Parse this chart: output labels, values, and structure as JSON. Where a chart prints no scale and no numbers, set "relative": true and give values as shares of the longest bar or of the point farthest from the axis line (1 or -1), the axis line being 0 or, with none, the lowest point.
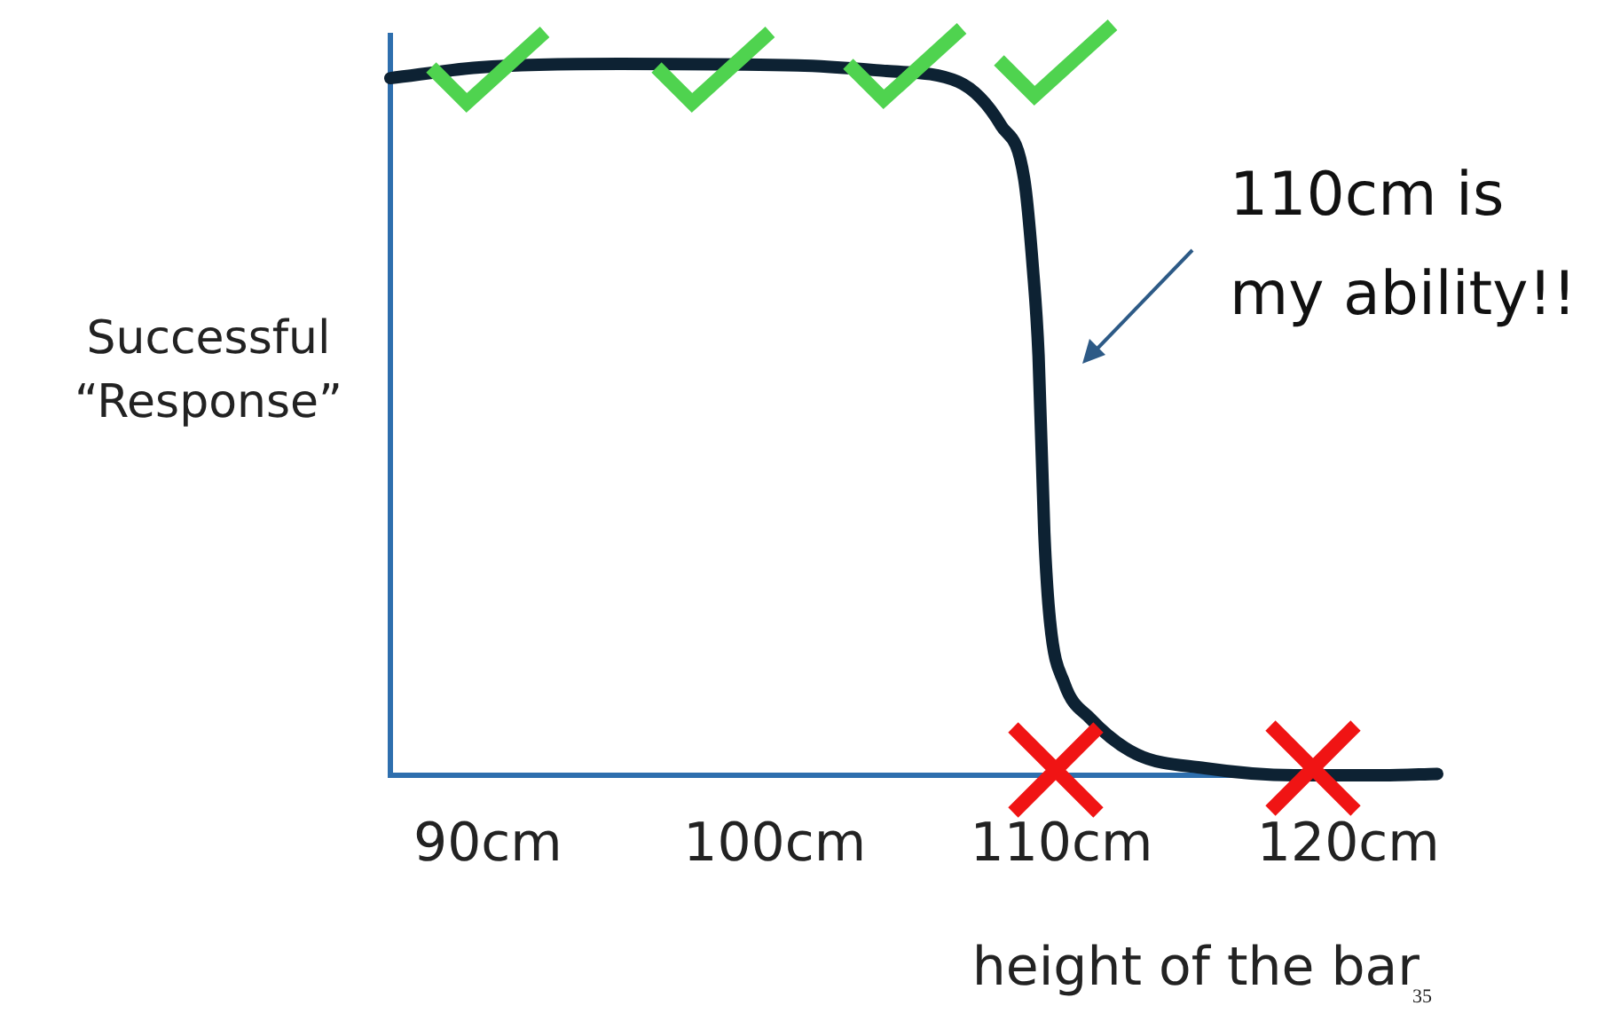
{
  "chart_data": {
    "type": "line",
    "relative": true,
    "xlabel": "height of the bar",
    "ylabel": "Successful “Response”",
    "annotations": [
      "110cm is my ability!!",
      "35"
    ],
    "x": [
      86.6,
      89.7,
      94.6,
      100.8,
      103.9,
      106.4,
      107.9,
      108.7,
      109.0,
      109.2,
      109.4,
      109.6,
      110.1,
      111.0,
      112.6,
      115.0,
      118.1,
      121.2,
      123.1
    ],
    "series": [
      {
        "color": "#0d2233",
        "values": [
          0.98,
          0.995,
          1,
          0.998,
          0.99,
          0.975,
          0.913,
          0.838,
          0.714,
          0.59,
          0.341,
          0.216,
          0.129,
          0.08,
          0.03,
          0.01,
          0,
          0,
          0.002
        ]
      }
    ],
    "xlim": [
      86.6,
      123.1
    ],
    "xticks": [
      {
        "value": 90,
        "label": "90cm"
      },
      {
        "value": 100,
        "label": "100cm"
      },
      {
        "value": 110,
        "label": "110cm"
      },
      {
        "value": 120,
        "label": "120cm"
      }
    ],
    "tick_labels": "x",
    "grid": false,
    "legend": false,
    "marker": "none",
    "line_style": "solid"
  }
}
